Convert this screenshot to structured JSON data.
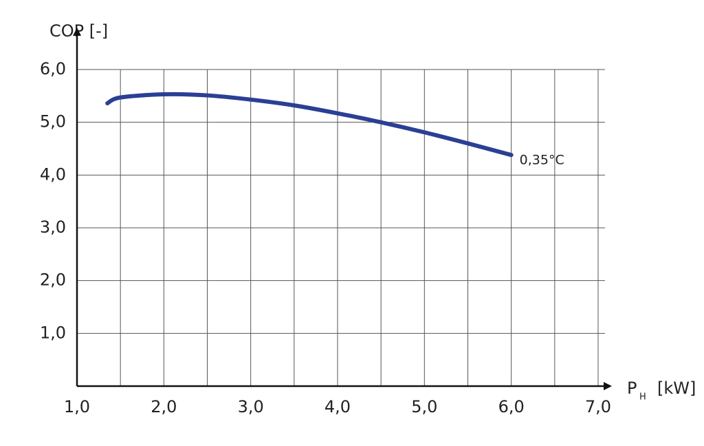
{
  "chart_data": {
    "type": "line",
    "ylabel": "COP [-]",
    "xlabel": {
      "symbol": "P",
      "subscript": "H",
      "unit": "[kW]"
    },
    "x": [
      1.35,
      1.5,
      2.0,
      2.5,
      3.0,
      3.5,
      4.0,
      4.5,
      5.0,
      5.5,
      6.0
    ],
    "series": [
      {
        "name": "0,35°C",
        "color": "#2b3f94",
        "values": [
          5.36,
          5.47,
          5.53,
          5.51,
          5.43,
          5.32,
          5.17,
          5.0,
          4.81,
          4.6,
          4.38
        ]
      }
    ],
    "xlim": [
      1.0,
      7.0
    ],
    "ylim": [
      0,
      6.0
    ],
    "xticks": [
      {
        "value": 1.0,
        "label": "1,0"
      },
      {
        "value": 2.0,
        "label": "2,0"
      },
      {
        "value": 3.0,
        "label": "3,0"
      },
      {
        "value": 4.0,
        "label": "4,0"
      },
      {
        "value": 5.0,
        "label": "5,0"
      },
      {
        "value": 6.0,
        "label": "6,0"
      },
      {
        "value": 7.0,
        "label": "7,0"
      }
    ],
    "xminorticks": [
      1.5,
      2.5,
      3.5,
      4.5,
      5.5,
      6.5
    ],
    "yticks": [
      {
        "value": 1.0,
        "label": "1,0"
      },
      {
        "value": 2.0,
        "label": "2,0"
      },
      {
        "value": 3.0,
        "label": "3,0"
      },
      {
        "value": 4.0,
        "label": "4,0"
      },
      {
        "value": 5.0,
        "label": "5,0"
      },
      {
        "value": 6.0,
        "label": "6,0"
      }
    ],
    "grid": true
  }
}
